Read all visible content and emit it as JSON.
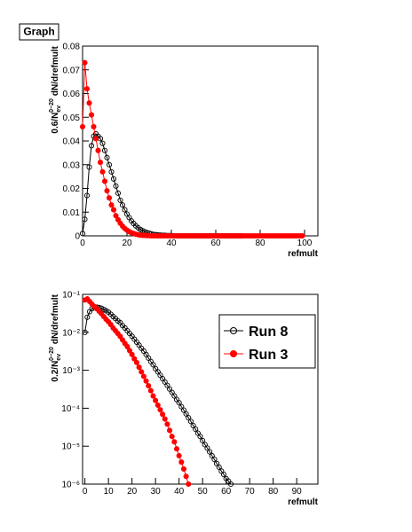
{
  "chart_data": [
    {
      "type": "line",
      "title": "Graph",
      "xlabel": "refmult",
      "ylabel": {
        "prefix": "0.6/N",
        "sub": "ev",
        "sup": "0−20",
        "suffix": "dN/drefmult"
      },
      "xlim": [
        0,
        106
      ],
      "ylim": [
        0,
        0.08
      ],
      "xticks": [
        0,
        20,
        40,
        60,
        80,
        100
      ],
      "yticks": [
        0,
        0.01,
        0.02,
        0.03,
        0.04,
        0.05,
        0.06,
        0.07,
        0.08
      ],
      "log_y": false,
      "x": [
        0,
        1,
        2,
        3,
        4,
        5,
        6,
        7,
        8,
        9,
        10,
        11,
        12,
        13,
        14,
        15,
        16,
        17,
        18,
        19,
        20,
        21,
        22,
        23,
        24,
        25,
        26,
        27,
        28,
        29,
        30,
        31,
        32,
        33,
        34,
        35,
        36,
        37,
        38,
        39,
        40,
        41,
        42,
        43,
        44,
        45,
        46,
        47,
        48,
        49,
        50,
        51,
        52,
        53,
        54,
        55,
        56,
        57,
        58,
        59,
        60,
        61,
        62,
        63,
        64,
        65,
        66,
        67,
        68,
        69,
        70,
        71,
        72,
        73,
        74,
        75,
        76,
        77,
        78,
        79,
        80,
        81,
        82,
        83,
        84,
        85,
        86,
        87,
        88,
        89,
        90,
        91,
        92,
        93,
        94,
        95,
        96,
        97,
        98,
        99,
        100
      ],
      "series": [
        {
          "color": "#000000",
          "marker": "open",
          "values": [
            0.001,
            0.007,
            0.017,
            0.029,
            0.038,
            0.042,
            0.043,
            0.042,
            0.041,
            0.039,
            0.036,
            0.033,
            0.03,
            0.027,
            0.024,
            0.021,
            0.018,
            0.015,
            0.013,
            0.011,
            0.0092,
            0.0077,
            0.0063,
            0.0052,
            0.0042,
            0.0034,
            0.0027,
            0.0022,
            0.0017,
            0.0014,
            0.0011,
            0.0008,
            0.0006,
            0.0005,
            0.0004,
            0.0003,
            0.0002,
            0.0002,
            0.0001,
            0.0001,
            0.0001,
            0,
            0,
            0,
            0,
            0,
            0,
            0,
            0,
            0,
            0,
            0,
            0,
            0,
            0,
            0,
            0,
            0,
            0,
            0,
            0,
            0,
            0,
            0,
            0,
            0,
            0,
            0,
            0,
            0,
            0,
            0,
            0,
            null,
            null,
            null,
            null,
            null,
            null,
            null,
            null,
            null,
            null,
            null,
            null,
            null,
            null,
            null,
            null,
            null,
            null,
            null,
            null,
            null,
            null,
            null,
            null,
            null,
            null,
            null,
            null
          ]
        },
        {
          "color": "#ff0000",
          "marker": "filled",
          "values": [
            0.046,
            0.073,
            0.062,
            0.056,
            0.051,
            0.046,
            0.041,
            0.036,
            0.031,
            0.027,
            0.023,
            0.019,
            0.016,
            0.013,
            0.011,
            0.0085,
            0.0068,
            0.0053,
            0.0041,
            0.0031,
            0.0024,
            0.0018,
            0.0013,
            0.001,
            0.0007,
            0.0005,
            0.0003,
            0.0002,
            0.0002,
            0.0001,
            0.0001,
            0,
            0,
            0,
            0,
            0,
            0,
            0,
            0,
            0,
            0,
            0,
            0,
            0,
            0,
            0,
            0,
            0,
            0,
            0,
            0,
            0,
            0,
            0,
            0,
            0,
            0,
            0,
            0,
            0,
            0,
            0,
            0,
            0,
            0,
            0,
            0,
            0,
            0,
            0,
            0,
            0,
            0,
            0,
            0,
            0,
            0,
            0,
            0,
            0,
            0,
            0,
            0,
            0,
            0,
            0,
            0,
            0,
            0,
            0,
            0,
            0,
            0,
            0,
            0,
            0,
            0,
            0,
            0,
            0,
            null
          ]
        }
      ]
    },
    {
      "type": "line",
      "xlabel": "refmult",
      "ylabel": {
        "prefix": "0.2/N",
        "sub": "ev",
        "sup": "0−20",
        "suffix": "dN/drefmult"
      },
      "xlim": [
        -1,
        99
      ],
      "ylim": [
        1e-06,
        0.1
      ],
      "xticks": [
        0,
        10,
        20,
        30,
        40,
        50,
        60,
        70,
        80,
        90
      ],
      "yticks": [
        {
          "value": 1e-06,
          "label": "10⁻⁶"
        },
        {
          "value": 1e-05,
          "label": "10⁻⁵"
        },
        {
          "value": 0.0001,
          "label": "10⁻⁴"
        },
        {
          "value": 0.001,
          "label": "10⁻³"
        },
        {
          "value": 0.01,
          "label": "10⁻²"
        },
        {
          "value": 0.1,
          "label": "10⁻¹"
        }
      ],
      "log_y": true,
      "legend": "upper right",
      "x": [
        0,
        1,
        2,
        3,
        4,
        5,
        6,
        7,
        8,
        9,
        10,
        11,
        12,
        13,
        14,
        15,
        16,
        17,
        18,
        19,
        20,
        21,
        22,
        23,
        24,
        25,
        26,
        27,
        28,
        29,
        30,
        31,
        32,
        33,
        34,
        35,
        36,
        37,
        38,
        39,
        40,
        41,
        42,
        43,
        44,
        45,
        46,
        47,
        48,
        49,
        50,
        51,
        52,
        53,
        54,
        55,
        56,
        57,
        58,
        59,
        60,
        61,
        62
      ],
      "series": [
        {
          "name": "Run 8",
          "color": "#000000",
          "marker": "open",
          "values": [
            0.01,
            0.025,
            0.035,
            0.042,
            0.045,
            0.046,
            0.045,
            0.043,
            0.04,
            0.037,
            0.034,
            0.03,
            0.026,
            0.023,
            0.02,
            0.018,
            0.015,
            0.013,
            0.011,
            0.0093,
            0.0079,
            0.0066,
            0.0055,
            0.0046,
            0.0038,
            0.0032,
            0.0026,
            0.0021,
            0.0017,
            0.0014,
            0.0011,
            0.00091,
            0.00074,
            0.0006,
            0.00049,
            0.0004,
            0.00032,
            0.00026,
            0.00021,
            0.00017,
            0.00014,
            0.00011,
            8.9e-05,
            7.1e-05,
            5.6e-05,
            4.5e-05,
            3.5e-05,
            2.8e-05,
            2.2e-05,
            1.8e-05,
            1.4e-05,
            1.1e-05,
            8.9e-06,
            7.1e-06,
            5.6e-06,
            4.5e-06,
            3.5e-06,
            2.8e-06,
            2.2e-06,
            1.8e-06,
            1.4e-06,
            1.2e-06,
            1e-06
          ]
        },
        {
          "name": "Run 3",
          "color": "#ff0000",
          "marker": "filled",
          "values": [
            0.071,
            0.076,
            0.065,
            0.055,
            0.048,
            0.042,
            0.036,
            0.031,
            0.026,
            0.022,
            0.019,
            0.016,
            0.013,
            0.011,
            0.0093,
            0.0078,
            0.0063,
            0.0051,
            0.0042,
            0.0033,
            0.0026,
            0.002,
            0.0016,
            0.0012,
            0.00091,
            0.00069,
            0.00052,
            0.00039,
            0.00029,
            0.00021,
            0.00016,
            0.00012,
            9.1e-05,
            6.9e-05,
            5.2e-05,
            3.8e-05,
            2.6e-05,
            1.8e-05,
            1.3e-05,
            8.5e-06,
            5.6e-06,
            3.8e-06,
            2.5e-06,
            1.6e-06,
            1e-06,
            null,
            null,
            null,
            null,
            null,
            null,
            null,
            null,
            null,
            null,
            null,
            null,
            null,
            null,
            null,
            null,
            null,
            null
          ]
        }
      ]
    }
  ]
}
